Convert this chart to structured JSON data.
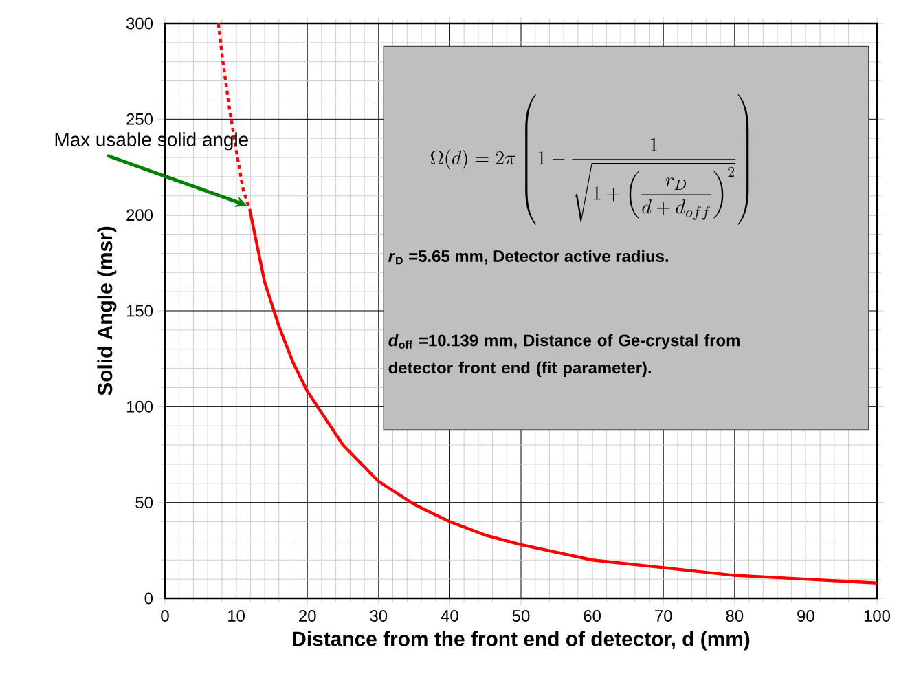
{
  "chart_data": {
    "type": "line",
    "xlabel": "Distance from the front end of detector, d (mm)",
    "ylabel": "Solid Angle (msr)",
    "xlim": [
      0,
      100
    ],
    "ylim": [
      0,
      300
    ],
    "xticks": [
      0,
      10,
      20,
      30,
      40,
      50,
      60,
      70,
      80,
      90,
      100
    ],
    "yticks": [
      0,
      50,
      100,
      150,
      200,
      250,
      300
    ],
    "grid": true,
    "marker": "none",
    "series": [
      {
        "color": "#ff0000",
        "line_style": "dotted",
        "x": [
          7.5,
          8,
          9,
          10,
          11,
          11.9
        ],
        "values": [
          300,
          284,
          257,
          234,
          213,
          203
        ]
      },
      {
        "color": "#ff0000",
        "line_style": "solid",
        "x": [
          11.9,
          14,
          16,
          18,
          20,
          25,
          30,
          35,
          40,
          45,
          50,
          60,
          70,
          80,
          90,
          100
        ],
        "values": [
          203,
          165,
          142,
          123,
          108,
          80,
          61,
          49,
          40,
          33,
          28,
          20,
          16,
          12,
          10,
          8
        ]
      }
    ],
    "annotations": [
      "\\Omega(d)=2\\pi\\left(1-\\frac{1}{\\sqrt{1+\\left(\\dfrac{r_D}{d+d_{off}}\\right)^2}}\\right)",
      "*r*$_{D}$ =5.65 mm, Detector active radius.",
      "*d*$_{off}$ =10.139 mm, Distance of Ge-crystal from detector front end (fit parameter).",
      {
        "text": "Max usable solid angle",
        "x": 11.5,
        "y": 205
      }
    ]
  }
}
